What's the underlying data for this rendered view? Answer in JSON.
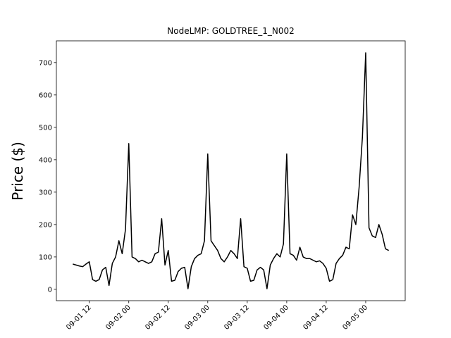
{
  "chart_data": {
    "type": "line",
    "title": "NodeLMP: GOLDTREE_1_N002",
    "y_label": "Price ($)",
    "x": [
      "09-01 07",
      "09-01 08",
      "09-01 09",
      "09-01 10",
      "09-01 11",
      "09-01 12",
      "09-01 13",
      "09-01 14",
      "09-01 15",
      "09-01 16",
      "09-01 17",
      "09-01 18",
      "09-01 19",
      "09-01 20",
      "09-01 21",
      "09-01 22",
      "09-01 23",
      "09-02 00",
      "09-02 01",
      "09-02 02",
      "09-02 03",
      "09-02 04",
      "09-02 05",
      "09-02 06",
      "09-02 07",
      "09-02 08",
      "09-02 09",
      "09-02 10",
      "09-02 11",
      "09-02 12",
      "09-02 13",
      "09-02 14",
      "09-02 15",
      "09-02 16",
      "09-02 17",
      "09-02 18",
      "09-02 19",
      "09-02 20",
      "09-02 21",
      "09-02 22",
      "09-02 23",
      "09-03 00",
      "09-03 01",
      "09-03 02",
      "09-03 03",
      "09-03 04",
      "09-03 05",
      "09-03 06",
      "09-03 07",
      "09-03 08",
      "09-03 09",
      "09-03 10",
      "09-03 11",
      "09-03 12",
      "09-03 13",
      "09-03 14",
      "09-03 15",
      "09-03 16",
      "09-03 17",
      "09-03 18",
      "09-03 19",
      "09-03 20",
      "09-03 21",
      "09-03 22",
      "09-03 23",
      "09-04 00",
      "09-04 01",
      "09-04 02",
      "09-04 03",
      "09-04 04",
      "09-04 05",
      "09-04 06",
      "09-04 07",
      "09-04 08",
      "09-04 09",
      "09-04 10",
      "09-04 11",
      "09-04 12",
      "09-04 13",
      "09-04 14",
      "09-04 15",
      "09-04 16",
      "09-04 17",
      "09-04 18",
      "09-04 19",
      "09-04 20",
      "09-04 21",
      "09-04 22",
      "09-04 23",
      "09-05 00",
      "09-05 01",
      "09-05 02",
      "09-05 03",
      "09-05 04",
      "09-05 05",
      "09-05 06",
      "09-05 07"
    ],
    "values": [
      78,
      75,
      72,
      70,
      78,
      85,
      30,
      25,
      30,
      60,
      68,
      12,
      80,
      100,
      150,
      110,
      185,
      450,
      100,
      95,
      85,
      90,
      85,
      80,
      85,
      110,
      115,
      218,
      75,
      120,
      25,
      28,
      55,
      65,
      68,
      2,
      70,
      95,
      105,
      110,
      150,
      418,
      150,
      135,
      120,
      95,
      85,
      100,
      120,
      110,
      95,
      218,
      70,
      65,
      25,
      28,
      60,
      68,
      60,
      2,
      75,
      95,
      110,
      100,
      140,
      418,
      110,
      105,
      90,
      130,
      100,
      95,
      95,
      90,
      85,
      88,
      80,
      65,
      25,
      30,
      80,
      95,
      105,
      130,
      125,
      230,
      200,
      315,
      470,
      730,
      190,
      165,
      160,
      200,
      170,
      125,
      120
    ],
    "color": "#000000",
    "xlim": [
      "09-01 02",
      "09-05 12"
    ],
    "xticks": [
      "09-01 12",
      "09-02 00",
      "09-02 12",
      "09-03 00",
      "09-03 12",
      "09-04 00",
      "09-04 12",
      "09-05 00"
    ],
    "ylim": [
      -35,
      767
    ],
    "yticks": [
      0,
      100,
      200,
      300,
      400,
      500,
      600,
      700
    ],
    "grid": false
  }
}
